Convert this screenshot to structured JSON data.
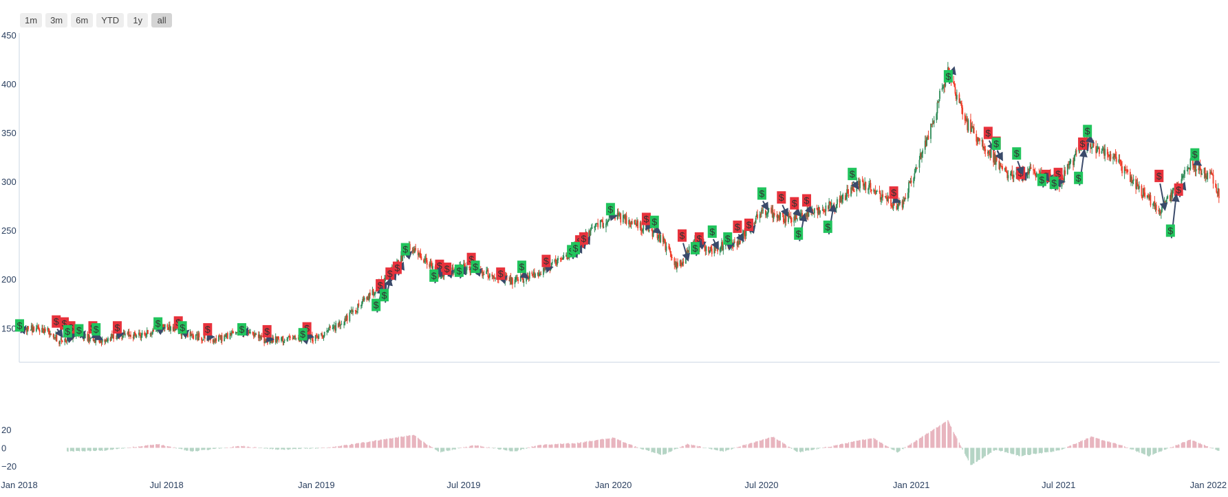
{
  "range_selector": {
    "buttons": [
      {
        "label": "1m",
        "active": false
      },
      {
        "label": "3m",
        "active": false
      },
      {
        "label": "6m",
        "active": false
      },
      {
        "label": "YTD",
        "active": false
      },
      {
        "label": "1y",
        "active": false
      },
      {
        "label": "all",
        "active": true
      }
    ]
  },
  "colors": {
    "increasing": "#2e8b57",
    "decreasing": "#f03c28",
    "buy_marker": "#21c45d",
    "sell_marker": "#e8323c",
    "arrow": "#3a4a6a",
    "hist_positive": "#e8b4be",
    "hist_negative": "#b4d4c4",
    "axis_text": "#2a3f5f"
  },
  "chart_data": [
    {
      "type": "candlestick",
      "x_range": [
        "2018-01-01",
        "2022-01-15"
      ],
      "ylim": [
        115,
        452
      ],
      "y_ticks": [
        150,
        200,
        250,
        300,
        350,
        400,
        450
      ],
      "x_ticks": [
        "Jan 2018",
        "Jul 2018",
        "Jan 2019",
        "Jul 2019",
        "Jan 2020",
        "Jul 2020",
        "Jan 2021",
        "Jul 2021",
        "Jan 2022"
      ],
      "grid": false,
      "price_anchors": [
        [
          "2018-01-01",
          150
        ],
        [
          "2018-02-05",
          148
        ],
        [
          "2018-02-20",
          136
        ],
        [
          "2018-03-15",
          145
        ],
        [
          "2018-04-10",
          135
        ],
        [
          "2018-05-01",
          143
        ],
        [
          "2018-06-01",
          143
        ],
        [
          "2018-07-01",
          152
        ],
        [
          "2018-08-01",
          142
        ],
        [
          "2018-09-01",
          138
        ],
        [
          "2018-10-01",
          148
        ],
        [
          "2018-11-01",
          137
        ],
        [
          "2018-12-01",
          139
        ],
        [
          "2019-01-01",
          140
        ],
        [
          "2019-02-01",
          155
        ],
        [
          "2019-03-01",
          178
        ],
        [
          "2019-04-01",
          205
        ],
        [
          "2019-04-25",
          232
        ],
        [
          "2019-05-10",
          222
        ],
        [
          "2019-06-01",
          205
        ],
        [
          "2019-07-01",
          212
        ],
        [
          "2019-08-01",
          205
        ],
        [
          "2019-09-01",
          197
        ],
        [
          "2019-10-01",
          207
        ],
        [
          "2019-11-01",
          220
        ],
        [
          "2019-12-01",
          247
        ],
        [
          "2020-01-01",
          266
        ],
        [
          "2020-02-10",
          252
        ],
        [
          "2020-03-01",
          240
        ],
        [
          "2020-03-20",
          212
        ],
        [
          "2020-04-10",
          238
        ],
        [
          "2020-05-01",
          230
        ],
        [
          "2020-06-01",
          238
        ],
        [
          "2020-07-01",
          270
        ],
        [
          "2020-08-01",
          262
        ],
        [
          "2020-09-01",
          268
        ],
        [
          "2020-10-01",
          278
        ],
        [
          "2020-11-01",
          300
        ],
        [
          "2020-12-01",
          280
        ],
        [
          "2020-12-20",
          275
        ],
        [
          "2021-01-15",
          330
        ],
        [
          "2021-02-01",
          375
        ],
        [
          "2021-02-15",
          415
        ],
        [
          "2021-03-10",
          360
        ],
        [
          "2021-04-01",
          335
        ],
        [
          "2021-05-01",
          305
        ],
        [
          "2021-06-01",
          310
        ],
        [
          "2021-07-01",
          298
        ],
        [
          "2021-08-01",
          340
        ],
        [
          "2021-09-01",
          330
        ],
        [
          "2021-10-01",
          300
        ],
        [
          "2021-11-01",
          270
        ],
        [
          "2021-11-20",
          290
        ],
        [
          "2021-12-10",
          318
        ],
        [
          "2022-01-05",
          305
        ],
        [
          "2022-01-15",
          285
        ]
      ],
      "buy_markers": [
        [
          "2018-01-01",
          152
        ],
        [
          "2018-03-01",
          146
        ],
        [
          "2018-03-15",
          147
        ],
        [
          "2018-04-05",
          148
        ],
        [
          "2018-06-20",
          154
        ],
        [
          "2018-07-20",
          150
        ],
        [
          "2018-10-01",
          148
        ],
        [
          "2018-12-15",
          143
        ],
        [
          "2019-03-15",
          173
        ],
        [
          "2019-03-25",
          183
        ],
        [
          "2019-04-20",
          230
        ],
        [
          "2019-05-25",
          203
        ],
        [
          "2019-06-25",
          208
        ],
        [
          "2019-07-15",
          212
        ],
        [
          "2019-09-10",
          212
        ],
        [
          "2019-11-10",
          228
        ],
        [
          "2019-11-15",
          231
        ],
        [
          "2019-12-28",
          271
        ],
        [
          "2020-02-20",
          258
        ],
        [
          "2020-04-10",
          231
        ],
        [
          "2020-05-01",
          248
        ],
        [
          "2020-05-20",
          241
        ],
        [
          "2020-07-01",
          287
        ],
        [
          "2020-08-15",
          246
        ],
        [
          "2020-09-20",
          253
        ],
        [
          "2020-10-20",
          307
        ],
        [
          "2021-02-15",
          407
        ],
        [
          "2021-04-15",
          338
        ],
        [
          "2021-05-10",
          328
        ],
        [
          "2021-06-10",
          301
        ],
        [
          "2021-06-25",
          298
        ],
        [
          "2021-07-25",
          303
        ],
        [
          "2021-08-05",
          351
        ],
        [
          "2021-11-15",
          249
        ],
        [
          "2021-12-15",
          327
        ]
      ],
      "sell_markers": [
        [
          "2018-02-15",
          156
        ],
        [
          "2018-02-25",
          154
        ],
        [
          "2018-03-05",
          150
        ],
        [
          "2018-04-01",
          150
        ],
        [
          "2018-05-01",
          150
        ],
        [
          "2018-07-15",
          155
        ],
        [
          "2018-08-20",
          148
        ],
        [
          "2018-11-01",
          146
        ],
        [
          "2018-12-20",
          149
        ],
        [
          "2019-03-20",
          193
        ],
        [
          "2019-04-01",
          205
        ],
        [
          "2019-04-10",
          211
        ],
        [
          "2019-06-01",
          213
        ],
        [
          "2019-06-10",
          210
        ],
        [
          "2019-07-10",
          220
        ],
        [
          "2019-08-15",
          205
        ],
        [
          "2019-10-10",
          218
        ],
        [
          "2019-11-20",
          238
        ],
        [
          "2019-11-25",
          241
        ],
        [
          "2020-02-10",
          261
        ],
        [
          "2020-03-25",
          244
        ],
        [
          "2020-04-15",
          241
        ],
        [
          "2020-06-01",
          253
        ],
        [
          "2020-06-15",
          255
        ],
        [
          "2020-07-25",
          283
        ],
        [
          "2020-08-10",
          277
        ],
        [
          "2020-08-25",
          280
        ],
        [
          "2020-12-10",
          288
        ],
        [
          "2021-04-05",
          349
        ],
        [
          "2021-04-15",
          339
        ],
        [
          "2021-05-15",
          308
        ],
        [
          "2021-06-15",
          305
        ],
        [
          "2021-06-30",
          307
        ],
        [
          "2021-07-30",
          338
        ],
        [
          "2021-11-01",
          305
        ],
        [
          "2021-11-25",
          291
        ]
      ]
    },
    {
      "type": "bar",
      "title": "",
      "ylim": [
        -29,
        50
      ],
      "y_ticks": [
        -20,
        0,
        20
      ],
      "x_range": [
        "2018-03-01",
        "2022-01-15"
      ],
      "osc_anchors": [
        [
          "2018-03-01",
          -4
        ],
        [
          "2018-04-15",
          -3
        ],
        [
          "2018-06-20",
          4
        ],
        [
          "2018-08-01",
          -4
        ],
        [
          "2018-10-01",
          2
        ],
        [
          "2018-11-15",
          -2
        ],
        [
          "2019-01-15",
          0
        ],
        [
          "2019-02-15",
          4
        ],
        [
          "2019-03-15",
          8
        ],
        [
          "2019-05-01",
          14
        ],
        [
          "2019-05-15",
          5
        ],
        [
          "2019-06-01",
          -5
        ],
        [
          "2019-07-15",
          3
        ],
        [
          "2019-09-01",
          -4
        ],
        [
          "2019-10-01",
          3
        ],
        [
          "2019-11-15",
          5
        ],
        [
          "2020-01-01",
          11
        ],
        [
          "2020-02-01",
          0
        ],
        [
          "2020-03-01",
          -8
        ],
        [
          "2020-04-01",
          4
        ],
        [
          "2020-05-15",
          -4
        ],
        [
          "2020-07-15",
          12
        ],
        [
          "2020-08-15",
          -5
        ],
        [
          "2020-09-15",
          0
        ],
        [
          "2020-11-15",
          11
        ],
        [
          "2020-12-15",
          -5
        ],
        [
          "2021-02-15",
          30
        ],
        [
          "2021-03-15",
          -19
        ],
        [
          "2021-04-15",
          -2
        ],
        [
          "2021-05-15",
          -9
        ],
        [
          "2021-07-01",
          -3
        ],
        [
          "2021-08-10",
          12
        ],
        [
          "2021-09-15",
          3
        ],
        [
          "2021-10-20",
          -9
        ],
        [
          "2021-12-10",
          9
        ],
        [
          "2022-01-15",
          -4
        ]
      ]
    }
  ]
}
